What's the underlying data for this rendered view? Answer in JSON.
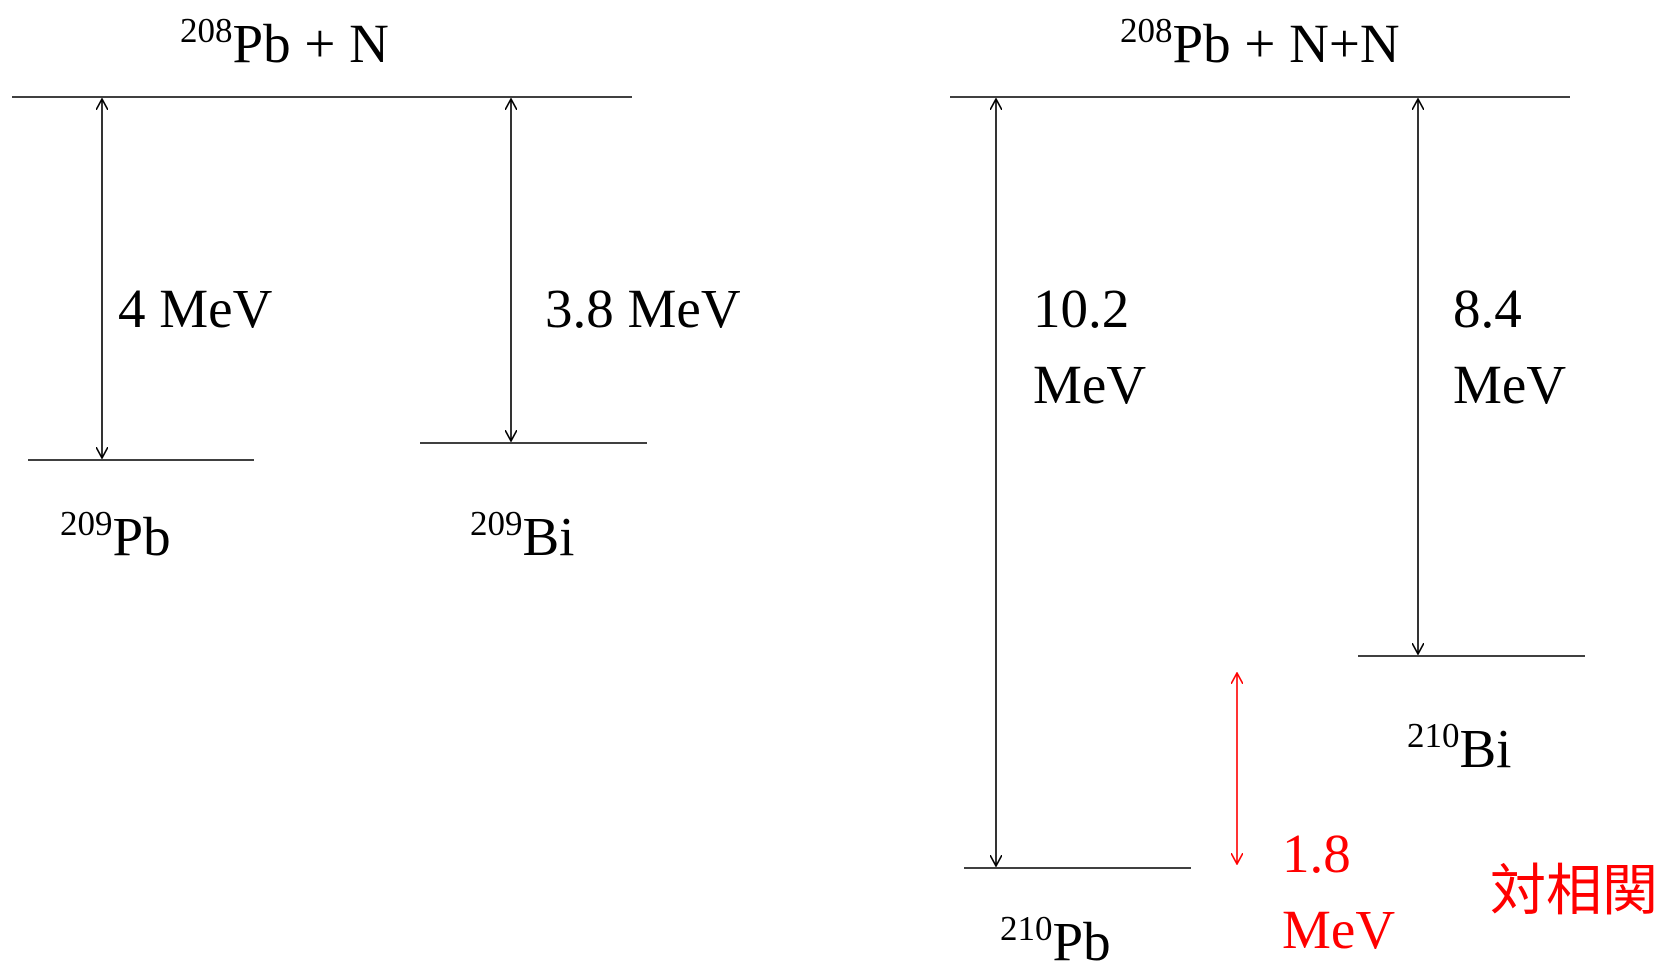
{
  "left": {
    "top_state": {
      "mass": "208",
      "element": "Pb",
      "suffix": " + N"
    },
    "transitions": [
      {
        "value": "4 MeV",
        "product_mass": "209",
        "product_element": "Pb"
      },
      {
        "value": "3.8 MeV",
        "product_mass": "209",
        "product_element": "Bi"
      }
    ]
  },
  "right": {
    "top_state": {
      "mass": "208",
      "element": "Pb",
      "suffix": " + N+N"
    },
    "transitions": [
      {
        "value_line1": "10.2",
        "value_line2": "MeV",
        "product_mass": "210",
        "product_element": "Pb"
      },
      {
        "value_line1": "8.4",
        "value_line2": "MeV",
        "product_mass": "210",
        "product_element": "Bi"
      }
    ],
    "pairing": {
      "value_line1": "1.8",
      "value_line2": "MeV",
      "label": "対相関"
    }
  },
  "colors": {
    "text": "#000000",
    "highlight": "#ff0000"
  }
}
